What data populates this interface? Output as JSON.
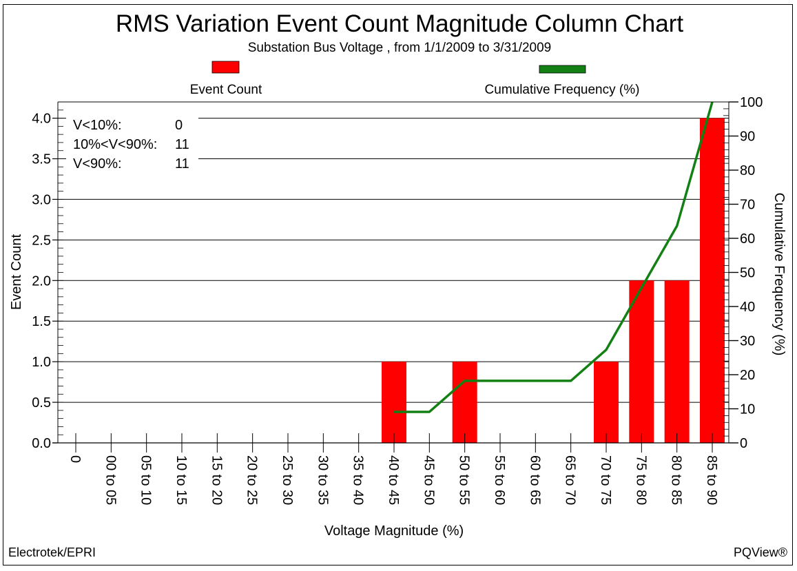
{
  "chart_data": {
    "type": "bar",
    "title": "RMS Variation Event Count Magnitude Column Chart",
    "subtitle": "Substation Bus Voltage , from 1/1/2009 to 3/31/2009",
    "xlabel": "Voltage Magnitude (%)",
    "ylabel": "Event Count",
    "y2label": "Cumulative Frequency (%)",
    "ylim": [
      0,
      4.2
    ],
    "y2lim": [
      0,
      100
    ],
    "yticks": [
      "0.0",
      "0.5",
      "1.0",
      "1.5",
      "2.0",
      "2.5",
      "3.0",
      "3.5",
      "4.0"
    ],
    "y2ticks": [
      "0",
      "10",
      "20",
      "30",
      "40",
      "50",
      "60",
      "70",
      "80",
      "90",
      "100"
    ],
    "grid": true,
    "legend_position": "top",
    "categories": [
      "0",
      "00 to 05",
      "05 to 10",
      "10 to 15",
      "15 to 20",
      "20 to 25",
      "25 to 30",
      "30 to 35",
      "35 to 40",
      "40 to 45",
      "45 to 50",
      "50 to 55",
      "55 to 60",
      "60 to 65",
      "65 to 70",
      "70 to 75",
      "75 to 80",
      "80 to 85",
      "85 to 90"
    ],
    "series": [
      {
        "name": "Event Count",
        "type": "bar",
        "axis": "left",
        "color": "#ff0000",
        "values": [
          0,
          0,
          0,
          0,
          0,
          0,
          0,
          0,
          0,
          1,
          0,
          1,
          0,
          0,
          0,
          1,
          2,
          2,
          4
        ]
      },
      {
        "name": "Cumulative Frequency (%)",
        "type": "line",
        "axis": "right",
        "color": "#138013",
        "values": [
          null,
          null,
          null,
          null,
          null,
          null,
          null,
          null,
          null,
          9.1,
          9.1,
          18.2,
          18.2,
          18.2,
          18.2,
          27.3,
          45.5,
          63.6,
          100
        ]
      }
    ],
    "annotations": [
      {
        "label": "V<10%:",
        "value": "0"
      },
      {
        "label": "10%<V<90%:",
        "value": "11"
      },
      {
        "label": "V<90%:",
        "value": "11"
      }
    ]
  },
  "footer": {
    "left": "Electrotek/EPRI",
    "right": "PQView®"
  }
}
